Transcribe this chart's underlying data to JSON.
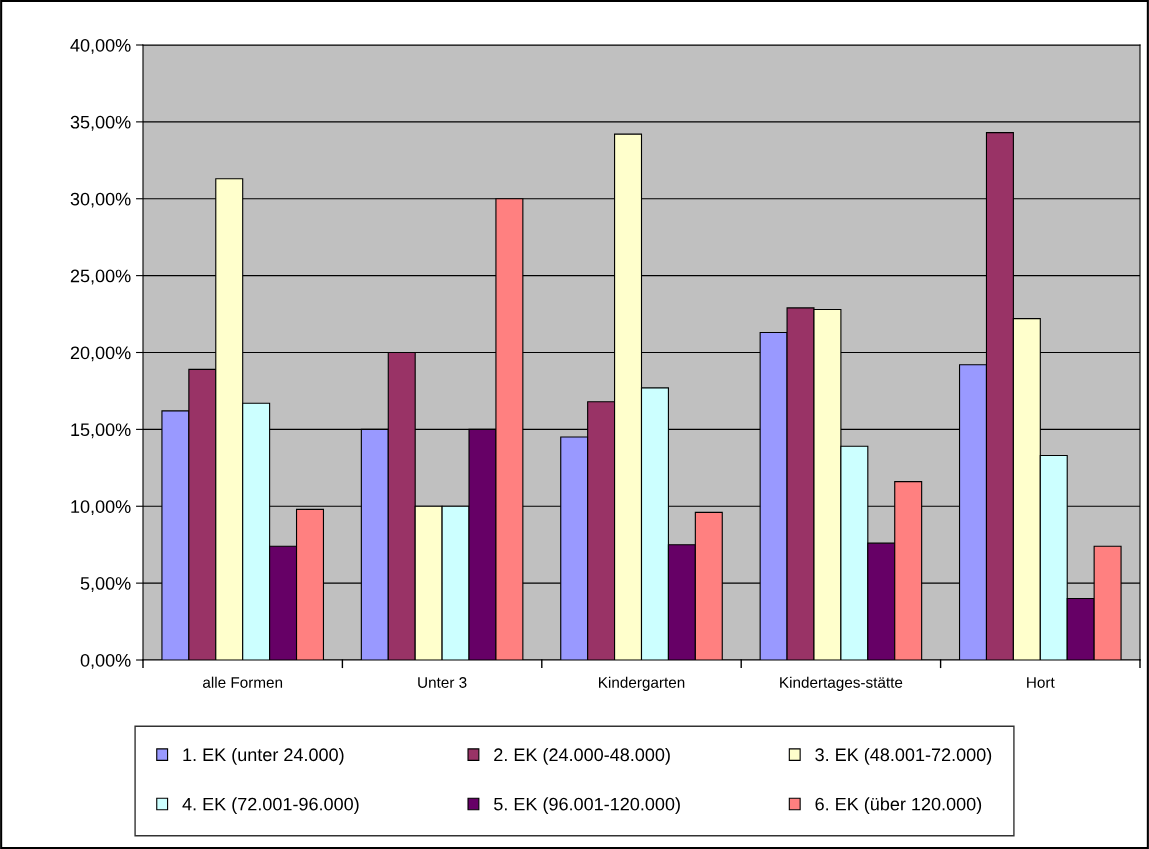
{
  "chart_data": {
    "type": "bar",
    "categories": [
      "alle Formen",
      "Unter 3",
      "Kindergarten",
      "Kindertages-stätte",
      "Hort"
    ],
    "series": [
      {
        "name": "1. EK (unter 24.000)",
        "color": "#9999ff",
        "values": [
          16.2,
          15.0,
          14.5,
          21.3,
          19.2
        ]
      },
      {
        "name": "2. EK (24.000-48.000)",
        "color": "#993366",
        "values": [
          18.9,
          20.0,
          16.8,
          22.9,
          34.3
        ]
      },
      {
        "name": "3. EK (48.001-72.000)",
        "color": "#ffffcc",
        "values": [
          31.3,
          10.0,
          34.2,
          22.8,
          22.2
        ]
      },
      {
        "name": "4. EK (72.001-96.000)",
        "color": "#ccffff",
        "values": [
          16.7,
          10.0,
          17.7,
          13.9,
          13.3
        ]
      },
      {
        "name": "5. EK (96.001-120.000)",
        "color": "#660066",
        "values": [
          7.4,
          15.0,
          7.5,
          7.6,
          4.0
        ]
      },
      {
        "name": "6. EK (über 120.000)",
        "color": "#ff8080",
        "values": [
          9.8,
          30.0,
          9.6,
          11.6,
          7.4
        ]
      }
    ],
    "ylim": [
      0,
      40
    ],
    "yticks": [
      {
        "value": 0,
        "label": "0,00%"
      },
      {
        "value": 5,
        "label": "5,00%"
      },
      {
        "value": 10,
        "label": "10,00%"
      },
      {
        "value": 15,
        "label": "15,00%"
      },
      {
        "value": 20,
        "label": "20,00%"
      },
      {
        "value": 25,
        "label": "25,00%"
      },
      {
        "value": 30,
        "label": "30,00%"
      },
      {
        "value": 35,
        "label": "35,00%"
      },
      {
        "value": 40,
        "label": "40,00%"
      }
    ],
    "grid": "y",
    "legend": "bottom"
  }
}
